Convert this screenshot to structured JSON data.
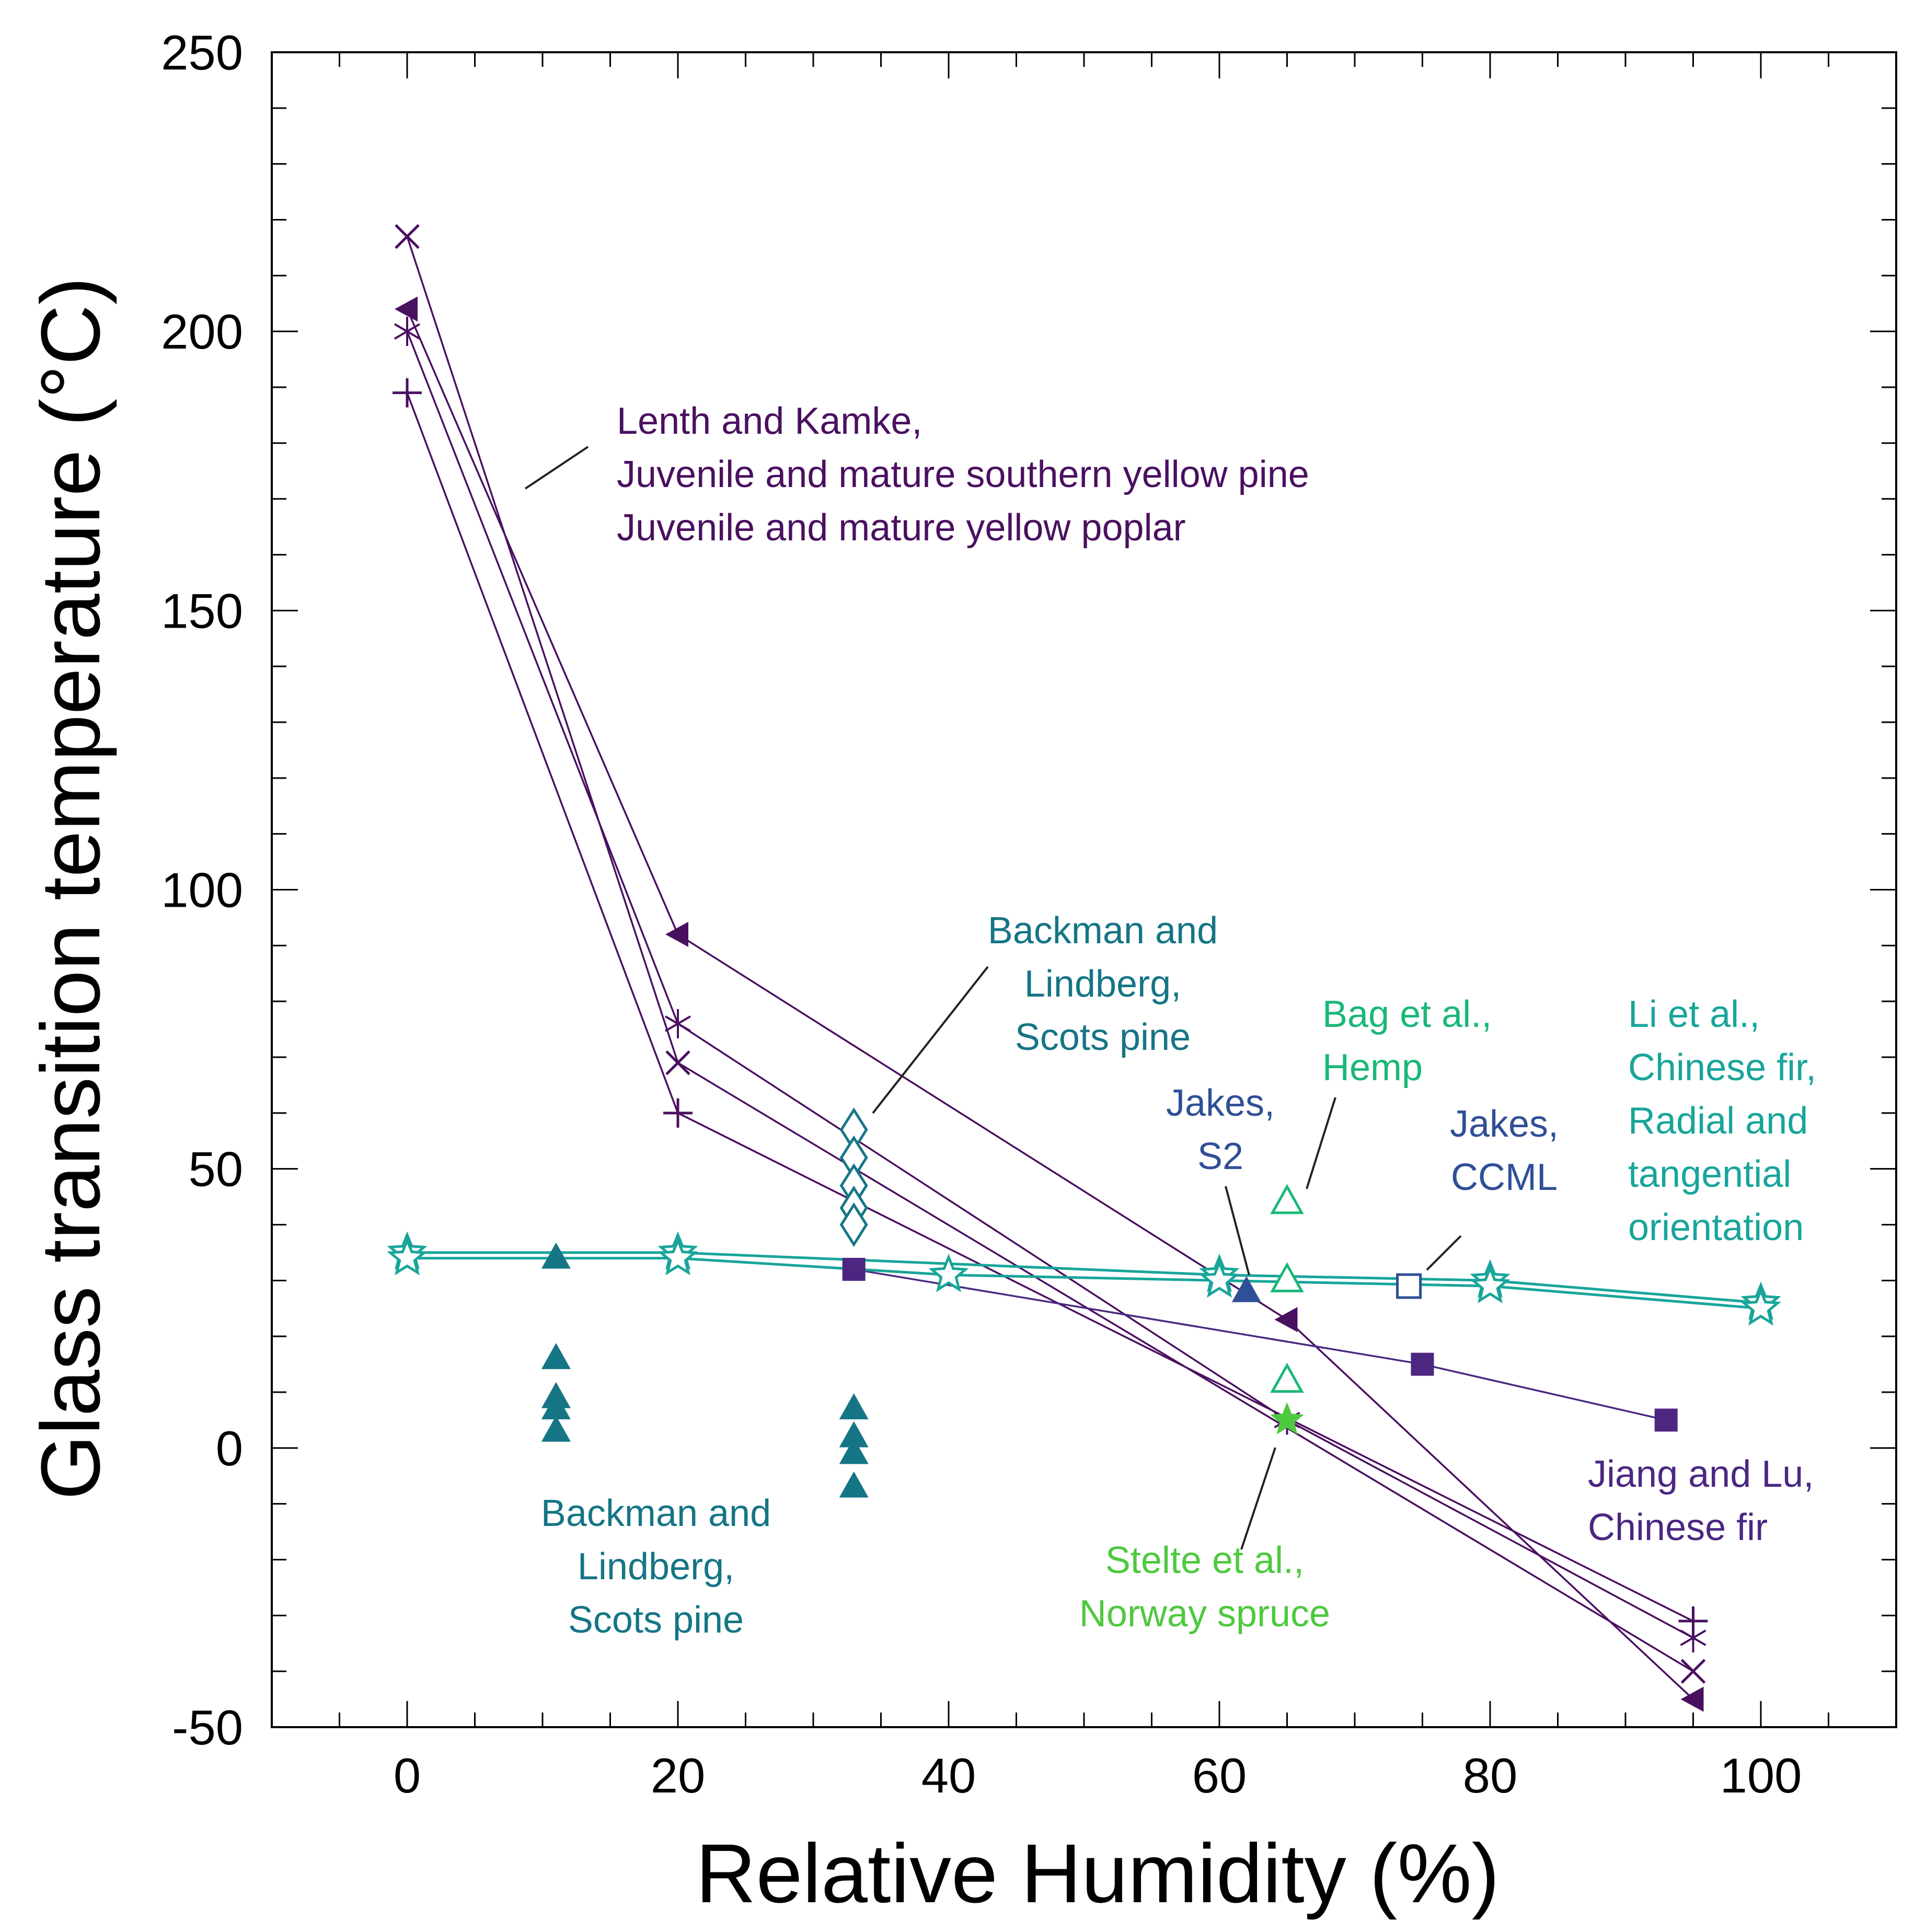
{
  "chart_data": {
    "type": "scatter",
    "title": "",
    "xlabel": "Relative Humidity (%)",
    "ylabel": "Glass transition temperature (°C)",
    "xlim": [
      -10,
      110
    ],
    "ylim": [
      -50,
      250
    ],
    "x_ticks": [
      0,
      20,
      40,
      60,
      80,
      100
    ],
    "y_ticks": [
      -50,
      0,
      50,
      100,
      150,
      200,
      250
    ],
    "x_tick_labels": [
      "0",
      "20",
      "40",
      "60",
      "80",
      "100"
    ],
    "y_tick_labels": [
      "-50",
      "0",
      "50",
      "100",
      "150",
      "200",
      "250"
    ],
    "grid": false,
    "colors": {
      "lenth": "#4a1060",
      "backman": "#157585",
      "jakes": "#2f4f96",
      "jiang": "#4b2782",
      "bag": "#19b877",
      "stelte": "#4ec93f",
      "li": "#18a59a"
    },
    "series": [
      {
        "name": "Lenth and Kamke, filled triangle",
        "group": "lenth",
        "marker": "filled-tri-left",
        "line": true,
        "x": [
          0,
          20,
          65,
          95
        ],
        "y": [
          204,
          92,
          23,
          -45
        ]
      },
      {
        "name": "Lenth and Kamke, asterisk",
        "group": "lenth",
        "marker": "asterisk",
        "line": true,
        "x": [
          0,
          20,
          65,
          95
        ],
        "y": [
          200,
          76,
          5,
          -34
        ]
      },
      {
        "name": "Lenth and Kamke, cross",
        "group": "lenth",
        "marker": "x",
        "line": true,
        "x": [
          0,
          20,
          95
        ],
        "y": [
          217,
          69,
          -40
        ]
      },
      {
        "name": "Lenth and Kamke, plus",
        "group": "lenth",
        "marker": "plus",
        "line": true,
        "x": [
          0,
          20,
          95
        ],
        "y": [
          189,
          60,
          -31
        ]
      },
      {
        "name": "Backman and Lindberg, diamonds",
        "group": "backman",
        "marker": "open-diamond",
        "line": false,
        "x": [
          33,
          33,
          33,
          33,
          33
        ],
        "y": [
          57,
          52,
          47,
          43,
          40
        ]
      },
      {
        "name": "Backman and Lindberg, triangles",
        "group": "backman",
        "marker": "filled-tri",
        "line": false,
        "x": [
          11,
          11,
          11,
          11,
          11,
          33,
          33,
          33,
          33
        ],
        "y": [
          34,
          16,
          9,
          7,
          3,
          7,
          2,
          -1,
          -7
        ]
      },
      {
        "name": "Jakes, S2",
        "group": "jakes",
        "marker": "filled-tri",
        "line": false,
        "x": [
          62
        ],
        "y": [
          28
        ]
      },
      {
        "name": "Jakes, CCML",
        "group": "jakes",
        "marker": "open-square",
        "line": false,
        "x": [
          74
        ],
        "y": [
          29
        ]
      },
      {
        "name": "Jiang and Lu, Chinese fir",
        "group": "jiang",
        "marker": "filled-square",
        "line": true,
        "x": [
          33,
          75,
          93
        ],
        "y": [
          32,
          15,
          5
        ]
      },
      {
        "name": "Bag et al., Hemp",
        "group": "bag",
        "marker": "open-tri",
        "line": false,
        "x": [
          65,
          65,
          65
        ],
        "y": [
          44,
          30,
          12
        ]
      },
      {
        "name": "Stelte et al., Norway spruce",
        "group": "stelte",
        "marker": "filled-star",
        "line": false,
        "x": [
          65
        ],
        "y": [
          5
        ]
      },
      {
        "name": "Li et al., radial",
        "group": "li",
        "marker": "open-star",
        "line": true,
        "x": [
          0,
          20,
          60,
          80,
          100
        ],
        "y": [
          35,
          35,
          31,
          30,
          26
        ]
      },
      {
        "name": "Li et al., tangential",
        "group": "li",
        "marker": "open-star",
        "line": true,
        "x": [
          0,
          20,
          40,
          60,
          80,
          100
        ],
        "y": [
          34,
          34,
          31,
          30,
          29,
          25
        ]
      }
    ],
    "annotations": [
      {
        "id": "lenth",
        "group": "lenth",
        "lines": [
          "Lenth and Kamke,",
          "Juvenile and mature southern yellow pine",
          "Juvenile and mature yellow poplar"
        ]
      },
      {
        "id": "backman-top",
        "group": "backman",
        "lines": [
          "Backman and",
          "Lindberg,",
          "Scots pine"
        ]
      },
      {
        "id": "backman-bottom",
        "group": "backman",
        "lines": [
          "Backman and",
          "Lindberg,",
          "Scots pine"
        ]
      },
      {
        "id": "bag",
        "group": "bag",
        "lines": [
          "Bag et al.,",
          "Hemp"
        ]
      },
      {
        "id": "jakes-s2",
        "group": "jakes",
        "lines": [
          "Jakes,",
          "S2"
        ]
      },
      {
        "id": "jakes-ccml",
        "group": "jakes",
        "lines": [
          "Jakes,",
          "CCML"
        ]
      },
      {
        "id": "li",
        "group": "li",
        "lines": [
          "Li et al.,",
          "Chinese fir,",
          "Radial and",
          "tangential",
          "orientation"
        ]
      },
      {
        "id": "jiang",
        "group": "jiang",
        "lines": [
          "Jiang and Lu,",
          "Chinese fir"
        ]
      },
      {
        "id": "stelte",
        "group": "stelte",
        "lines": [
          "Stelte et al.,",
          "Norway spruce"
        ]
      }
    ]
  }
}
